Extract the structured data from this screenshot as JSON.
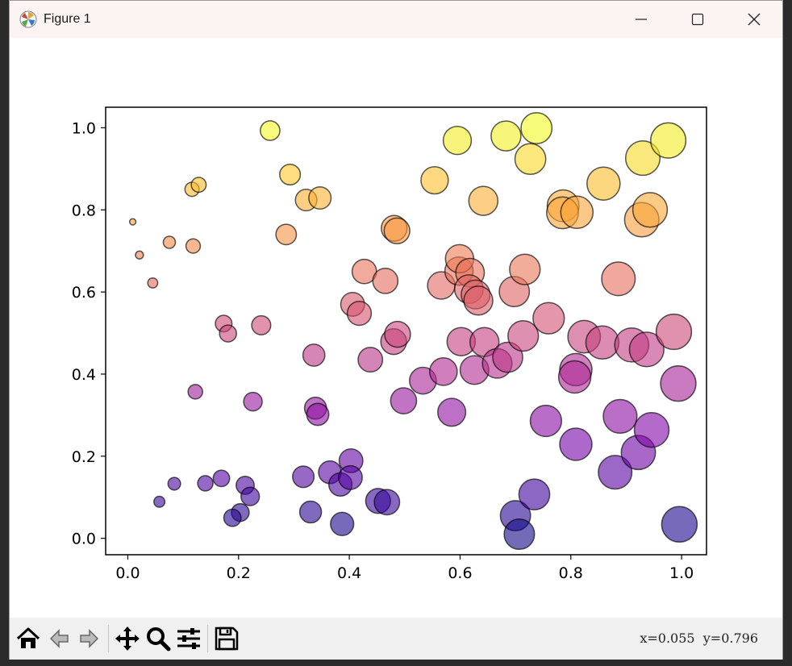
{
  "window": {
    "title": "Figure 1",
    "controls": {
      "minimize": "minimize",
      "maximize": "maximize",
      "close": "close"
    }
  },
  "toolbar": {
    "buttons": [
      {
        "name": "home",
        "icon": "home-icon"
      },
      {
        "name": "back",
        "icon": "back-arrow-icon"
      },
      {
        "name": "forward",
        "icon": "forward-arrow-icon"
      },
      {
        "name": "pan",
        "icon": "move-icon"
      },
      {
        "name": "zoom",
        "icon": "magnifier-icon"
      },
      {
        "name": "configure-subplots",
        "icon": "sliders-icon"
      },
      {
        "name": "save",
        "icon": "floppy-disk-icon"
      }
    ],
    "coords": "x=0.055  y=0.796"
  },
  "chart_data": {
    "type": "scatter",
    "colormap": "plasma",
    "alpha": 0.6,
    "edgecolor": "#000000",
    "xlim": [
      -0.04,
      1.045
    ],
    "ylim": [
      -0.04,
      1.05
    ],
    "xticks": [
      0.0,
      0.2,
      0.4,
      0.6,
      0.8,
      1.0
    ],
    "yticks": [
      0.0,
      0.2,
      0.4,
      0.6,
      0.8,
      1.0
    ],
    "xtick_labels": [
      "0.0",
      "0.2",
      "0.4",
      "0.6",
      "0.8",
      "1.0"
    ],
    "ytick_labels": [
      "0.0",
      "0.2",
      "0.4",
      "0.6",
      "0.8",
      "1.0"
    ],
    "grid": false,
    "title": "",
    "xlabel": "",
    "ylabel": "",
    "points": [
      {
        "x": 0.009,
        "y": 0.771
      },
      {
        "x": 0.021,
        "y": 0.69
      },
      {
        "x": 0.045,
        "y": 0.622
      },
      {
        "x": 0.075,
        "y": 0.721
      },
      {
        "x": 0.116,
        "y": 0.85
      },
      {
        "x": 0.128,
        "y": 0.861
      },
      {
        "x": 0.118,
        "y": 0.712
      },
      {
        "x": 0.173,
        "y": 0.523
      },
      {
        "x": 0.181,
        "y": 0.499
      },
      {
        "x": 0.241,
        "y": 0.519
      },
      {
        "x": 0.122,
        "y": 0.357
      },
      {
        "x": 0.226,
        "y": 0.333
      },
      {
        "x": 0.257,
        "y": 0.993
      },
      {
        "x": 0.293,
        "y": 0.886
      },
      {
        "x": 0.322,
        "y": 0.824
      },
      {
        "x": 0.347,
        "y": 0.829
      },
      {
        "x": 0.286,
        "y": 0.74
      },
      {
        "x": 0.336,
        "y": 0.446
      },
      {
        "x": 0.339,
        "y": 0.317
      },
      {
        "x": 0.343,
        "y": 0.302
      },
      {
        "x": 0.057,
        "y": 0.089
      },
      {
        "x": 0.084,
        "y": 0.133
      },
      {
        "x": 0.14,
        "y": 0.134
      },
      {
        "x": 0.169,
        "y": 0.146
      },
      {
        "x": 0.212,
        "y": 0.129
      },
      {
        "x": 0.221,
        "y": 0.102
      },
      {
        "x": 0.203,
        "y": 0.063
      },
      {
        "x": 0.189,
        "y": 0.05
      },
      {
        "x": 0.317,
        "y": 0.15
      },
      {
        "x": 0.33,
        "y": 0.064
      },
      {
        "x": 0.365,
        "y": 0.161
      },
      {
        "x": 0.384,
        "y": 0.131
      },
      {
        "x": 0.403,
        "y": 0.189
      },
      {
        "x": 0.402,
        "y": 0.148
      },
      {
        "x": 0.387,
        "y": 0.035
      },
      {
        "x": 0.452,
        "y": 0.091
      },
      {
        "x": 0.468,
        "y": 0.088
      },
      {
        "x": 0.427,
        "y": 0.65
      },
      {
        "x": 0.465,
        "y": 0.627
      },
      {
        "x": 0.406,
        "y": 0.57
      },
      {
        "x": 0.418,
        "y": 0.548
      },
      {
        "x": 0.481,
        "y": 0.755
      },
      {
        "x": 0.486,
        "y": 0.749
      },
      {
        "x": 0.438,
        "y": 0.435
      },
      {
        "x": 0.48,
        "y": 0.479
      },
      {
        "x": 0.487,
        "y": 0.497
      },
      {
        "x": 0.498,
        "y": 0.335
      },
      {
        "x": 0.533,
        "y": 0.384
      },
      {
        "x": 0.554,
        "y": 0.872
      },
      {
        "x": 0.595,
        "y": 0.969
      },
      {
        "x": 0.642,
        "y": 0.822
      },
      {
        "x": 0.683,
        "y": 0.98
      },
      {
        "x": 0.738,
        "y": 0.999
      },
      {
        "x": 0.727,
        "y": 0.924
      },
      {
        "x": 0.566,
        "y": 0.616
      },
      {
        "x": 0.598,
        "y": 0.651
      },
      {
        "x": 0.599,
        "y": 0.681
      },
      {
        "x": 0.618,
        "y": 0.647
      },
      {
        "x": 0.616,
        "y": 0.607
      },
      {
        "x": 0.628,
        "y": 0.594
      },
      {
        "x": 0.633,
        "y": 0.579
      },
      {
        "x": 0.698,
        "y": 0.601
      },
      {
        "x": 0.717,
        "y": 0.655
      },
      {
        "x": 0.57,
        "y": 0.406
      },
      {
        "x": 0.585,
        "y": 0.307
      },
      {
        "x": 0.602,
        "y": 0.479
      },
      {
        "x": 0.626,
        "y": 0.41
      },
      {
        "x": 0.644,
        "y": 0.478
      },
      {
        "x": 0.667,
        "y": 0.426
      },
      {
        "x": 0.686,
        "y": 0.441
      },
      {
        "x": 0.714,
        "y": 0.493
      },
      {
        "x": 0.76,
        "y": 0.536
      },
      {
        "x": 0.755,
        "y": 0.286
      },
      {
        "x": 0.809,
        "y": 0.229
      },
      {
        "x": 0.809,
        "y": 0.411
      },
      {
        "x": 0.807,
        "y": 0.393
      },
      {
        "x": 0.824,
        "y": 0.491
      },
      {
        "x": 0.857,
        "y": 0.477
      },
      {
        "x": 0.886,
        "y": 0.632
      },
      {
        "x": 0.91,
        "y": 0.471
      },
      {
        "x": 0.937,
        "y": 0.46
      },
      {
        "x": 0.986,
        "y": 0.503
      },
      {
        "x": 0.994,
        "y": 0.377
      },
      {
        "x": 0.889,
        "y": 0.297
      },
      {
        "x": 0.88,
        "y": 0.161
      },
      {
        "x": 0.922,
        "y": 0.209
      },
      {
        "x": 0.946,
        "y": 0.264
      },
      {
        "x": 0.996,
        "y": 0.034
      },
      {
        "x": 0.7,
        "y": 0.055
      },
      {
        "x": 0.707,
        "y": 0.01
      },
      {
        "x": 0.734,
        "y": 0.107
      },
      {
        "x": 0.786,
        "y": 0.81
      },
      {
        "x": 0.785,
        "y": 0.793
      },
      {
        "x": 0.811,
        "y": 0.794
      },
      {
        "x": 0.859,
        "y": 0.864
      },
      {
        "x": 0.93,
        "y": 0.926
      },
      {
        "x": 0.928,
        "y": 0.776
      },
      {
        "x": 0.943,
        "y": 0.8
      },
      {
        "x": 0.976,
        "y": 0.969
      }
    ]
  }
}
